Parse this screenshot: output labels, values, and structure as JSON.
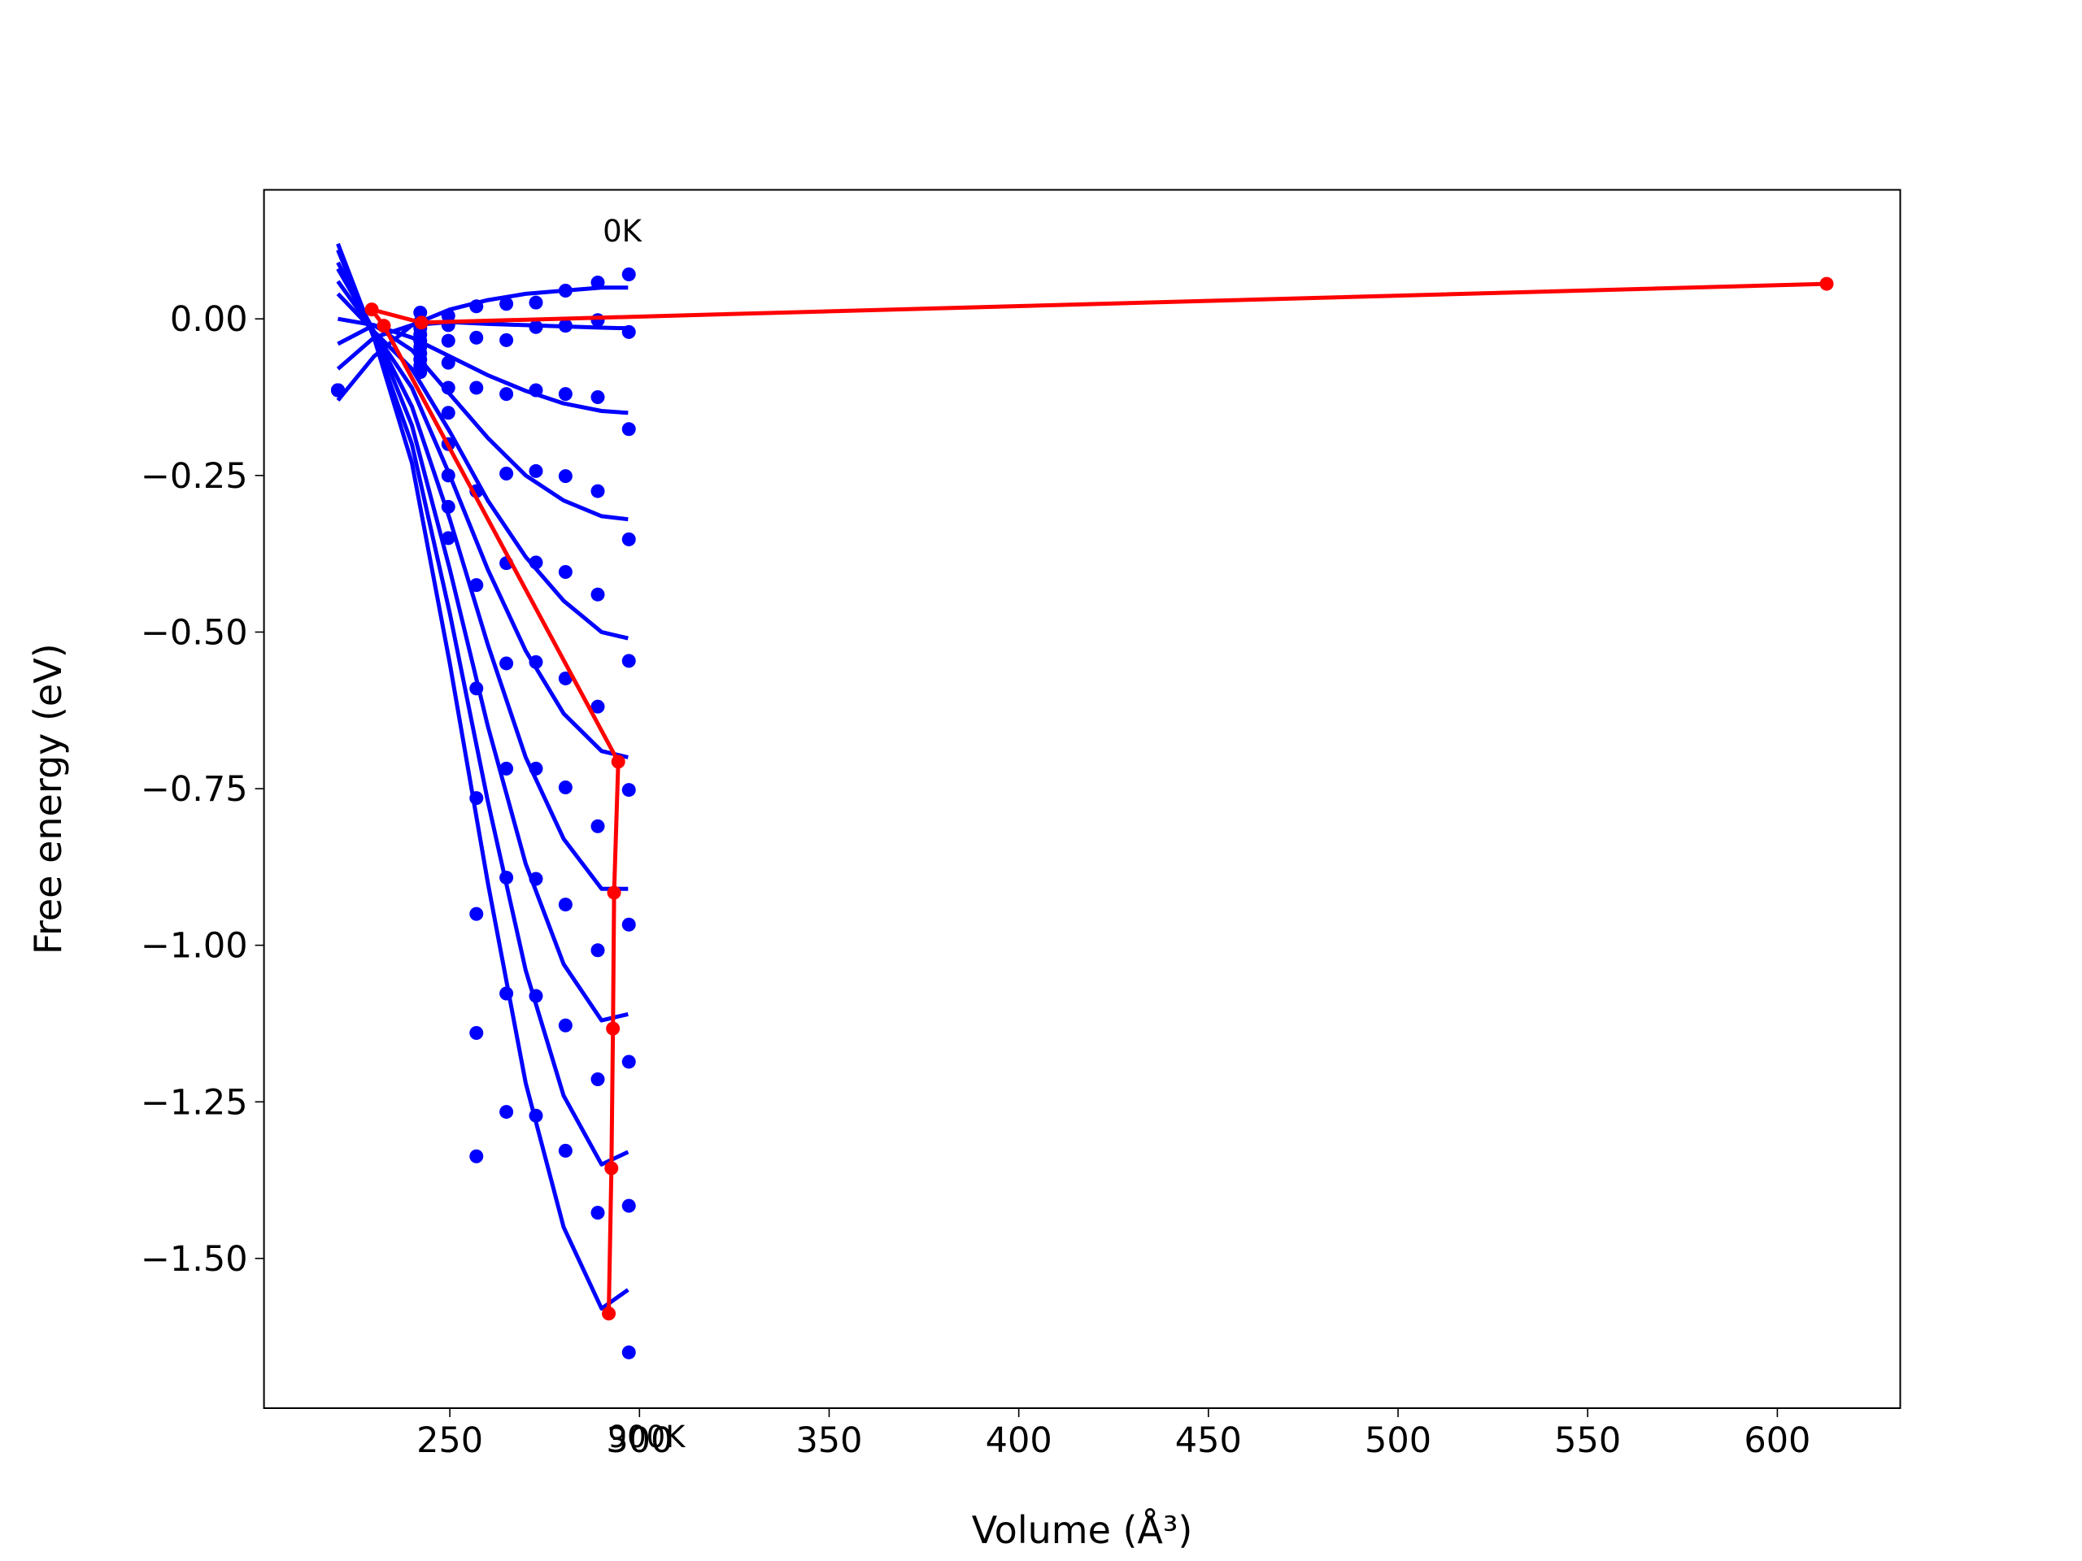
{
  "chart_data": {
    "type": "line",
    "xlabel": "Volume (Å³)",
    "ylabel": "Free energy (eV)",
    "xlim": [
      201,
      632.4
    ],
    "ylim": [
      -1.739,
      0.206
    ],
    "xticks": [
      250,
      300,
      350,
      400,
      450,
      500,
      550,
      600
    ],
    "yticks": [
      {
        "value": 0,
        "label": "0.00"
      },
      {
        "value": -0.25,
        "label": "−0.25"
      },
      {
        "value": -0.5,
        "label": "−0.50"
      },
      {
        "value": -0.75,
        "label": "−0.75"
      },
      {
        "value": -1,
        "label": "−1.00"
      },
      {
        "value": -1.25,
        "label": "−1.25"
      },
      {
        "value": -1.5,
        "label": "−1.50"
      }
    ],
    "grid": false,
    "annotations": [
      "0K",
      "900K"
    ],
    "series": [
      {
        "type": "scatter",
        "color": "#0000ff",
        "x": [
          220.5,
          242.2,
          249.6,
          257,
          264.9,
          272.7,
          280.5,
          289,
          297.2
        ],
        "values": [
          -0.114,
          0.01,
          0.005,
          0.02,
          0.024,
          0.026,
          0.045,
          0.058,
          0.071
        ]
      },
      {
        "type": "scatter",
        "color": "#0000ff",
        "x": [
          220.5,
          242.2,
          249.6,
          257,
          264.9,
          272.7,
          280.5,
          289,
          297.2
        ],
        "values": [
          -0.114,
          -0.005,
          -0.01,
          -0.03,
          -0.034,
          -0.013,
          -0.011,
          -0.002,
          -0.021
        ]
      },
      {
        "type": "scatter",
        "color": "#0000ff",
        "x": [
          220.5,
          242.2,
          249.6,
          257,
          264.9,
          272.7,
          280.5,
          289,
          297.2
        ],
        "values": [
          -0.114,
          -0.015,
          -0.035,
          -0.11,
          -0.12,
          -0.114,
          -0.12,
          -0.125,
          -0.176
        ]
      },
      {
        "type": "scatter",
        "color": "#0000ff",
        "x": [
          220.5,
          242.2,
          249.6,
          257,
          264.9,
          272.7,
          280.5,
          289,
          297.2
        ],
        "values": [
          -0.114,
          -0.025,
          -0.07,
          -0.275,
          -0.247,
          -0.243,
          -0.251,
          -0.275,
          -0.352
        ]
      },
      {
        "type": "scatter",
        "color": "#0000ff",
        "x": [
          220.5,
          242.2,
          249.6,
          257,
          264.9,
          272.7,
          280.5,
          289,
          297.2
        ],
        "values": [
          -0.114,
          -0.035,
          -0.11,
          -0.425,
          -0.39,
          -0.389,
          -0.404,
          -0.44,
          -0.546
        ]
      },
      {
        "type": "scatter",
        "color": "#0000ff",
        "x": [
          220.5,
          242.2,
          249.6,
          257,
          264.9,
          272.7,
          280.5,
          289,
          297.2
        ],
        "values": [
          -0.114,
          -0.045,
          -0.15,
          -0.59,
          -0.55,
          -0.548,
          -0.574,
          -0.619,
          -0.752
        ]
      },
      {
        "type": "scatter",
        "color": "#0000ff",
        "x": [
          220.5,
          242.2,
          249.6,
          257,
          264.9,
          272.7,
          280.5,
          289,
          297.2
        ],
        "values": [
          -0.114,
          -0.055,
          -0.2,
          -0.765,
          -0.718,
          -0.718,
          -0.748,
          -0.81,
          -0.967
        ]
      },
      {
        "type": "scatter",
        "color": "#0000ff",
        "x": [
          220.5,
          242.2,
          249.6,
          257,
          264.9,
          272.7,
          280.5,
          289,
          297.2
        ],
        "values": [
          -0.114,
          -0.065,
          -0.25,
          -0.95,
          -0.892,
          -0.894,
          -0.935,
          -1.008,
          -1.186
        ]
      },
      {
        "type": "scatter",
        "color": "#0000ff",
        "x": [
          220.5,
          242.2,
          249.6,
          257,
          264.9,
          272.7,
          280.5,
          289,
          297.2
        ],
        "values": [
          -0.114,
          -0.075,
          -0.3,
          -1.14,
          -1.077,
          -1.081,
          -1.128,
          -1.214,
          -1.416
        ]
      },
      {
        "type": "scatter",
        "color": "#0000ff",
        "x": [
          220.5,
          242.2,
          249.6,
          257,
          264.9,
          272.7,
          280.5,
          289,
          297.2
        ],
        "values": [
          -0.114,
          -0.085,
          -0.35,
          -1.337,
          -1.266,
          -1.272,
          -1.328,
          -1.427,
          -1.65
        ]
      },
      {
        "type": "line",
        "color": "#0000ff",
        "x": [
          220.5,
          230,
          240,
          250,
          260,
          270,
          280,
          290,
          297
        ],
        "values": [
          -0.13,
          -0.06,
          -0.01,
          0.015,
          0.03,
          0.04,
          0.045,
          0.05,
          0.05
        ]
      },
      {
        "type": "line",
        "color": "#0000ff",
        "x": [
          220.5,
          230,
          240,
          250,
          260,
          270,
          280,
          290,
          297
        ],
        "values": [
          -0.08,
          -0.03,
          -0.01,
          -0.005,
          -0.008,
          -0.01,
          -0.012,
          -0.014,
          -0.015
        ]
      },
      {
        "type": "line",
        "color": "#0000ff",
        "x": [
          220.5,
          230,
          240,
          250,
          260,
          270,
          280,
          290,
          297
        ],
        "values": [
          -0.04,
          -0.01,
          -0.03,
          -0.06,
          -0.09,
          -0.115,
          -0.135,
          -0.147,
          -0.15
        ]
      },
      {
        "type": "line",
        "color": "#0000ff",
        "x": [
          220.5,
          230,
          240,
          250,
          260,
          270,
          280,
          290,
          297
        ],
        "values": [
          0.0,
          -0.01,
          -0.05,
          -0.12,
          -0.19,
          -0.25,
          -0.29,
          -0.315,
          -0.32
        ]
      },
      {
        "type": "line",
        "color": "#0000ff",
        "x": [
          220.5,
          230,
          240,
          250,
          260,
          270,
          280,
          290,
          297
        ],
        "values": [
          0.04,
          -0.02,
          -0.08,
          -0.18,
          -0.29,
          -0.38,
          -0.45,
          -0.5,
          -0.51
        ]
      },
      {
        "type": "line",
        "color": "#0000ff",
        "x": [
          220.5,
          230,
          240,
          250,
          260,
          270,
          280,
          290,
          297
        ],
        "values": [
          0.06,
          -0.02,
          -0.11,
          -0.25,
          -0.4,
          -0.53,
          -0.63,
          -0.69,
          -0.7
        ]
      },
      {
        "type": "line",
        "color": "#0000ff",
        "x": [
          220.5,
          230,
          240,
          250,
          260,
          270,
          280,
          290,
          297
        ],
        "values": [
          0.08,
          -0.02,
          -0.14,
          -0.32,
          -0.52,
          -0.7,
          -0.83,
          -0.91,
          -0.91
        ]
      },
      {
        "type": "line",
        "color": "#0000ff",
        "x": [
          220.5,
          230,
          240,
          250,
          260,
          270,
          280,
          290,
          297
        ],
        "values": [
          0.09,
          -0.02,
          -0.17,
          -0.4,
          -0.65,
          -0.87,
          -1.03,
          -1.12,
          -1.11
        ]
      },
      {
        "type": "line",
        "color": "#0000ff",
        "x": [
          220.5,
          230,
          240,
          250,
          260,
          270,
          280,
          290,
          297
        ],
        "values": [
          0.11,
          -0.03,
          -0.2,
          -0.47,
          -0.77,
          -1.04,
          -1.24,
          -1.35,
          -1.33
        ]
      },
      {
        "type": "line",
        "color": "#0000ff",
        "x": [
          220.5,
          230,
          240,
          250,
          260,
          270,
          280,
          290,
          297
        ],
        "values": [
          0.12,
          -0.03,
          -0.23,
          -0.55,
          -0.9,
          -1.22,
          -1.45,
          -1.58,
          -1.55
        ]
      },
      {
        "type": "line",
        "marker": true,
        "color": "#ff0000",
        "x": [
          613,
          242.5,
          229.4,
          232.6,
          294.4,
          293.3,
          293,
          292.6,
          291.9
        ],
        "values": [
          0.056,
          -0.006,
          0.015,
          -0.011,
          -0.707,
          -0.916,
          -1.133,
          -1.356,
          -1.588
        ]
      }
    ]
  }
}
